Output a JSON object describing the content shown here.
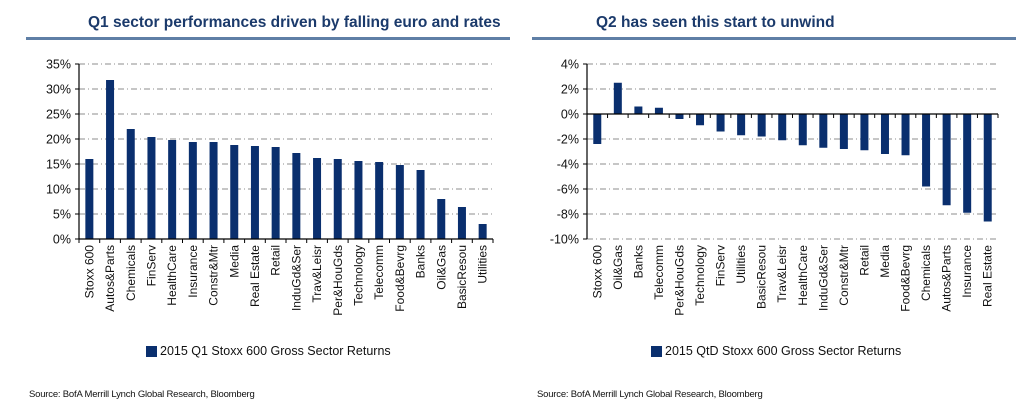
{
  "colors": {
    "bar": "#0a2f6e",
    "title": "#1b3a6b",
    "rule": "#5f7fa6",
    "grid": "#8c8c8c"
  },
  "chart_data": [
    {
      "type": "bar",
      "title": "Q1 sector performances driven by falling euro and rates",
      "xlabel": "",
      "ylabel": "",
      "ylim": [
        0,
        35
      ],
      "yticks": [
        0,
        5,
        10,
        15,
        20,
        25,
        30,
        35
      ],
      "ytick_labels": [
        "0%",
        "5%",
        "10%",
        "15%",
        "20%",
        "25%",
        "30%",
        "35%"
      ],
      "grid": "horizontal dashed",
      "legend_position": "bottom",
      "categories": [
        "Stoxx 600",
        "Autos&Parts",
        "Chemicals",
        "FinServ",
        "HealthCare",
        "Insurance",
        "Constr&Mtr",
        "Media",
        "Real Estate",
        "Retail",
        "InduGd&Ser",
        "Trav&Leisr",
        "Per&HouGds",
        "Technology",
        "Telecomm",
        "Food&Bevrg",
        "Banks",
        "Oil&Gas",
        "BasicResou",
        "Utilities"
      ],
      "series": [
        {
          "name": "2015 Q1 Stoxx 600 Gross Sector Returns",
          "values": [
            16.0,
            31.8,
            22.0,
            20.4,
            19.8,
            19.4,
            19.4,
            18.8,
            18.6,
            18.4,
            17.2,
            16.2,
            16.0,
            15.6,
            15.4,
            14.8,
            13.8,
            8.0,
            6.4,
            3.0
          ]
        }
      ],
      "source": "Source: BofA Merrill Lynch Global Research, Bloomberg"
    },
    {
      "type": "bar",
      "title": "Q2 has seen this start to unwind",
      "xlabel": "",
      "ylabel": "",
      "ylim": [
        -10,
        4
      ],
      "yticks": [
        -10,
        -8,
        -6,
        -4,
        -2,
        0,
        2,
        4
      ],
      "ytick_labels": [
        "-10%",
        "-8%",
        "-6%",
        "-4%",
        "-2%",
        "0%",
        "2%",
        "4%"
      ],
      "grid": "horizontal dashed",
      "legend_position": "bottom",
      "categories": [
        "Stoxx 600",
        "Oil&Gas",
        "Banks",
        "Telecomm",
        "Per&HouGds",
        "Technology",
        "FinServ",
        "Utilities",
        "BasicResou",
        "Trav&Leisr",
        "HealthCare",
        "InduGd&Ser",
        "Constr&Mtr",
        "Retail",
        "Media",
        "Food&Bevrg",
        "Chemicals",
        "Autos&Parts",
        "Insurance",
        "Real Estate"
      ],
      "series": [
        {
          "name": "2015 QtD Stoxx 600 Gross Sector Returns",
          "values": [
            -2.4,
            2.5,
            0.6,
            0.5,
            -0.4,
            -0.9,
            -1.4,
            -1.7,
            -1.8,
            -2.1,
            -2.5,
            -2.7,
            -2.8,
            -2.9,
            -3.2,
            -3.3,
            -5.8,
            -7.3,
            -7.9,
            -8.6
          ]
        }
      ],
      "source": "Source: BofA Merrill Lynch Global Research, Bloomberg"
    }
  ]
}
